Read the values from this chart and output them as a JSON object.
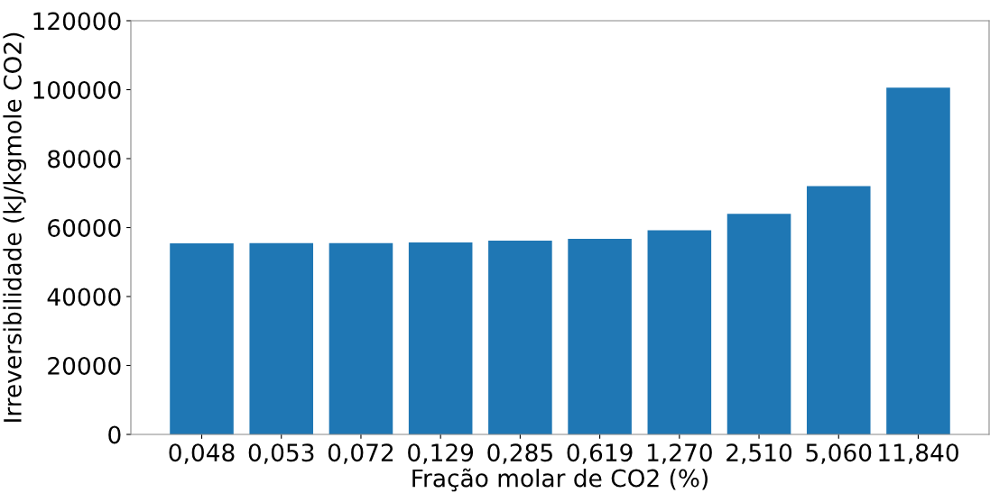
{
  "chart_data": {
    "type": "bar",
    "xlabel": "Fração molar de CO2 (%)",
    "ylabel": "Irreversibilidade (kJ/kgmole CO2)",
    "categories": [
      "0,048",
      "0,053",
      "0,072",
      "0,129",
      "0,285",
      "0,619",
      "1,270",
      "2,510",
      "5,060",
      "11,840"
    ],
    "values": [
      55400,
      55500,
      55500,
      55700,
      56200,
      56700,
      59200,
      64000,
      72000,
      100600
    ],
    "color": "#1f77b4",
    "ylim": [
      0,
      120000
    ],
    "yticks": [
      0,
      20000,
      40000,
      60000,
      80000,
      100000,
      120000
    ],
    "grid": false
  }
}
